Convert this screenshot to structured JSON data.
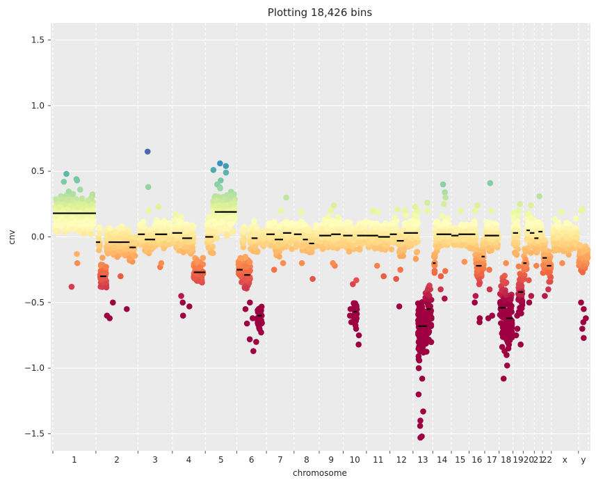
{
  "chart_data": {
    "type": "scatter",
    "title": "Plotting 18,426 bins",
    "xlabel": "chromosome",
    "ylabel": "cnv",
    "ylim": [
      -1.63,
      1.63
    ],
    "yticks": [
      -1.5,
      -1.0,
      -0.5,
      0.0,
      0.5,
      1.0,
      1.5
    ],
    "ytick_labels": [
      "−1.5",
      "−1.0",
      "−0.5",
      "0.0",
      "0.5",
      "1.0",
      "1.5"
    ],
    "colormap": "Spectral (red = loss, yellow = neutral, blue/purple = gain)",
    "colors": {
      "background": "#ebebeb",
      "grid": "#ffffff",
      "segment": "#000000",
      "spectral": [
        "#9e0142",
        "#d53e4f",
        "#f46d43",
        "#fdae61",
        "#fee08b",
        "#ffffbf",
        "#e6f598",
        "#abdda4",
        "#66c2a5",
        "#3288bd",
        "#5e4fa2"
      ]
    },
    "chromosomes": [
      {
        "label": "1",
        "length": 248,
        "baseline": 0.18,
        "spread": 0.09,
        "segments": [
          [
            0.0,
            1.0,
            0.18
          ]
        ],
        "lows": [
          -0.2,
          -0.38,
          -0.13
        ],
        "outliers": [
          0.48,
          0.44,
          0.42,
          0.43,
          0.36
        ]
      },
      {
        "label": "2",
        "length": 242,
        "baseline": -0.03,
        "spread": 0.07,
        "segments": [
          [
            0.0,
            0.1,
            -0.04
          ],
          [
            0.1,
            0.25,
            -0.3
          ],
          [
            0.3,
            0.8,
            -0.04
          ],
          [
            0.8,
            0.95,
            -0.08
          ]
        ],
        "lows": [
          -0.6,
          -0.62,
          -0.55,
          -0.5,
          -0.3
        ],
        "outliers": []
      },
      {
        "label": "3",
        "length": 198,
        "baseline": 0.02,
        "spread": 0.06,
        "segments": [
          [
            0.0,
            0.2,
            0.02
          ],
          [
            0.2,
            0.5,
            -0.02
          ],
          [
            0.5,
            0.85,
            0.02
          ]
        ],
        "lows": [
          -0.23,
          -0.2
        ],
        "outliers": [
          0.65,
          0.38,
          0.23,
          0.2
        ]
      },
      {
        "label": "4",
        "length": 190,
        "baseline": -0.02,
        "spread": 0.07,
        "segments": [
          [
            0.0,
            0.3,
            0.03
          ],
          [
            0.3,
            0.6,
            -0.01
          ],
          [
            0.65,
            1.0,
            -0.27
          ]
        ],
        "lows": [
          -0.6,
          -0.53,
          -0.5,
          -0.45
        ],
        "outliers": []
      },
      {
        "label": "5",
        "length": 181,
        "baseline": 0.19,
        "spread": 0.1,
        "segments": [
          [
            0.0,
            0.25,
            0.0
          ],
          [
            0.3,
            0.45,
            0.19
          ],
          [
            0.45,
            1.0,
            0.19
          ]
        ],
        "lows": [
          0.0
        ],
        "outliers": [
          0.56,
          0.54,
          0.51,
          0.49,
          0.43,
          0.4,
          0.37
        ]
      },
      {
        "label": "6",
        "length": 171,
        "baseline": -0.0,
        "spread": 0.07,
        "segments": [
          [
            0.0,
            0.2,
            -0.25
          ],
          [
            0.25,
            0.45,
            -0.29
          ],
          [
            0.5,
            0.7,
            -0.01
          ],
          [
            0.7,
            0.85,
            -0.6
          ]
        ],
        "lows": [
          -0.87,
          -0.8,
          -0.78,
          -0.66,
          -0.62,
          -0.55,
          -0.5
        ],
        "outliers": []
      },
      {
        "label": "7",
        "length": 159,
        "baseline": 0.02,
        "spread": 0.07,
        "segments": [
          [
            0.0,
            0.3,
            0.02
          ],
          [
            0.3,
            0.6,
            -0.02
          ],
          [
            0.6,
            0.9,
            0.03
          ]
        ],
        "lows": [
          -0.25,
          -0.2
        ],
        "outliers": [
          0.3,
          0.2
        ]
      },
      {
        "label": "8",
        "length": 145,
        "baseline": 0.0,
        "spread": 0.06,
        "segments": [
          [
            0.0,
            0.3,
            0.02
          ],
          [
            0.35,
            0.55,
            -0.02
          ],
          [
            0.6,
            0.8,
            -0.05
          ]
        ],
        "lows": [
          -0.32,
          -0.2
        ],
        "outliers": [
          0.19
        ]
      },
      {
        "label": "9",
        "length": 138,
        "baseline": 0.01,
        "spread": 0.07,
        "segments": [
          [
            0.0,
            0.5,
            0.01
          ],
          [
            0.5,
            0.9,
            0.02
          ]
        ],
        "lows": [
          -0.22,
          -0.2
        ],
        "outliers": [
          0.24,
          0.2
        ]
      },
      {
        "label": "10",
        "length": 134,
        "baseline": 0.01,
        "spread": 0.07,
        "segments": [
          [
            0.0,
            0.4,
            0.01
          ],
          [
            0.45,
            0.6,
            -0.57
          ],
          [
            0.6,
            1.0,
            0.01
          ]
        ],
        "lows": [
          -0.82,
          -0.75,
          -0.7,
          -0.65,
          -0.6,
          -0.55,
          -0.36,
          -0.33
        ],
        "outliers": []
      },
      {
        "label": "11",
        "length": 135,
        "baseline": 0.01,
        "spread": 0.07,
        "segments": [
          [
            0.0,
            0.5,
            0.01
          ],
          [
            0.5,
            1.0,
            0.0
          ]
        ],
        "lows": [
          -0.3,
          -0.22
        ],
        "outliers": [
          0.2,
          0.19
        ]
      },
      {
        "label": "12",
        "length": 133,
        "baseline": 0.0,
        "spread": 0.07,
        "segments": [
          [
            0.0,
            0.3,
            0.02
          ],
          [
            0.3,
            0.6,
            -0.03
          ],
          [
            0.6,
            1.0,
            0.03
          ]
        ],
        "lows": [
          -0.53,
          -0.32,
          -0.25
        ],
        "outliers": [
          0.21,
          0.2
        ]
      },
      {
        "label": "13",
        "length": 114,
        "baseline": -0.65,
        "spread": 0.15,
        "segments": [
          [
            0.0,
            0.25,
            0.03
          ],
          [
            0.25,
            0.7,
            -0.68
          ],
          [
            0.7,
            0.9,
            -0.55
          ]
        ],
        "lows": [
          -1.53,
          -1.52,
          -1.44,
          -1.4,
          -1.33,
          -1.2,
          -1.08,
          -1.0
        ],
        "outliers": [
          0.26,
          0.2
        ]
      },
      {
        "label": "14",
        "length": 107,
        "baseline": 0.02,
        "spread": 0.07,
        "segments": [
          [
            0.0,
            0.15,
            -0.2
          ],
          [
            0.2,
            1.0,
            0.02
          ]
        ],
        "lows": [
          -0.47,
          -0.4,
          -0.3,
          -0.26
        ],
        "outliers": [
          0.4,
          0.34,
          0.3,
          0.25
        ]
      },
      {
        "label": "15",
        "length": 102,
        "baseline": 0.02,
        "spread": 0.06,
        "segments": [
          [
            0.0,
            0.4,
            0.01
          ],
          [
            0.4,
            1.0,
            0.02
          ]
        ],
        "lows": [
          -0.19
        ],
        "outliers": [
          0.2
        ]
      },
      {
        "label": "16",
        "length": 90,
        "baseline": -0.05,
        "spread": 0.08,
        "segments": [
          [
            0.0,
            0.4,
            0.02
          ],
          [
            0.45,
            0.8,
            -0.22
          ],
          [
            0.8,
            1.0,
            -0.15
          ]
        ],
        "lows": [
          -0.65,
          -0.62,
          -0.5,
          -0.45
        ],
        "outliers": [
          0.24,
          0.2
        ]
      },
      {
        "label": "17",
        "length": 83,
        "baseline": 0.01,
        "spread": 0.08,
        "segments": [
          [
            0.0,
            1.0,
            0.01
          ]
        ],
        "lows": [
          -0.62,
          -0.6,
          -0.4,
          -0.25
        ],
        "outliers": [
          0.41,
          0.2
        ]
      },
      {
        "label": "18",
        "length": 80,
        "baseline": -0.5,
        "spread": 0.16,
        "segments": [
          [
            0.0,
            0.5,
            -0.54
          ],
          [
            0.5,
            1.0,
            -0.62
          ]
        ],
        "lows": [
          -1.08,
          -0.98,
          -0.9,
          -0.87,
          -0.85
        ],
        "outliers": [
          -0.2
        ]
      },
      {
        "label": "19",
        "length": 59,
        "baseline": -0.05,
        "spread": 0.12,
        "segments": [
          [
            0.0,
            0.5,
            0.03
          ],
          [
            0.5,
            1.0,
            -0.42
          ]
        ],
        "lows": [
          -0.82,
          -0.75,
          -0.7,
          -0.6
        ],
        "outliers": [
          0.25,
          0.2
        ]
      },
      {
        "label": "20",
        "length": 64,
        "baseline": -0.05,
        "spread": 0.09,
        "segments": [
          [
            0.0,
            0.3,
            -0.2
          ],
          [
            0.3,
            0.6,
            0.05
          ],
          [
            0.6,
            1.0,
            0.03
          ]
        ],
        "lows": [
          -0.5,
          -0.45,
          -0.33
        ],
        "outliers": [
          0.24
        ]
      },
      {
        "label": "21",
        "length": 47,
        "baseline": 0.0,
        "spread": 0.08,
        "segments": [
          [
            0.0,
            0.5,
            -0.01
          ],
          [
            0.5,
            1.0,
            0.04
          ]
        ],
        "lows": [
          -0.22
        ],
        "outliers": [
          0.31
        ]
      },
      {
        "label": "22",
        "length": 51,
        "baseline": -0.15,
        "spread": 0.08,
        "segments": [
          [
            0.0,
            0.5,
            -0.16
          ],
          [
            0.5,
            1.0,
            -0.22
          ]
        ],
        "lows": [
          -0.45,
          -0.4
        ],
        "outliers": []
      },
      {
        "label": "x",
        "length": 156,
        "baseline": 0.0,
        "spread": 0.07,
        "segments": [],
        "lows": [
          -0.2
        ],
        "outliers": [
          0.19
        ]
      },
      {
        "label": "y",
        "length": 57,
        "baseline": -0.15,
        "spread": 0.06,
        "segments": [],
        "lows": [
          -0.77,
          -0.7,
          -0.65,
          -0.62,
          -0.55,
          -0.5,
          -0.27
        ],
        "outliers": [
          0.21,
          0.2
        ]
      }
    ]
  }
}
